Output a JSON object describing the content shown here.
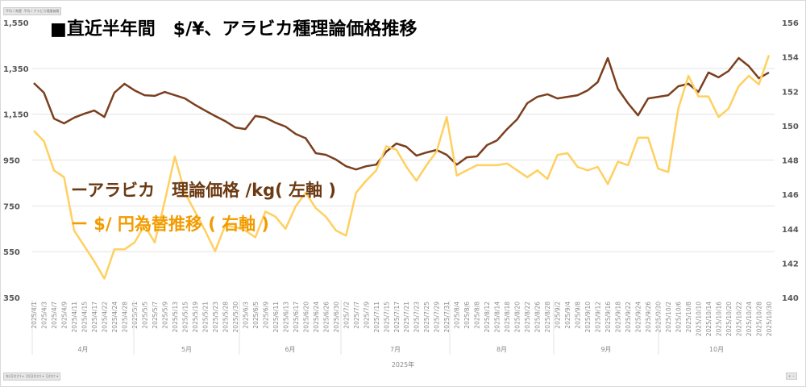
{
  "filters_top": [
    "平均 / 為替",
    "平均 / アラビカ理論価格"
  ],
  "filters_bottom": [
    "年(日付け) ▾",
    "月(日付け) ▾",
    "日付け ▾"
  ],
  "zoom_buttons": "+ −",
  "chart_data": {
    "type": "line",
    "title": "■直近半年間　$/¥、アラビカ種理論価格推移",
    "year_label": "2025年",
    "months": [
      "4月",
      "5月",
      "6月",
      "7月",
      "8月",
      "9月",
      "10月"
    ],
    "x": [
      "2025/4/1",
      "2025/4/3",
      "2025/4/7",
      "2025/4/9",
      "2025/4/11",
      "2025/4/15",
      "2025/4/17",
      "2025/4/22",
      "2025/4/24",
      "2025/4/28",
      "2025/5/1",
      "2025/5/5",
      "2025/5/7",
      "2025/5/9",
      "2025/5/13",
      "2025/5/15",
      "2025/5/19",
      "2025/5/21",
      "2025/5/23",
      "2025/5/28",
      "2025/5/30",
      "2025/6/3",
      "2025/6/5",
      "2025/6/9",
      "2025/6/11",
      "2025/6/13",
      "2025/6/17",
      "2025/6/20",
      "2025/6/24",
      "2025/6/26",
      "2025/6/30",
      "2025/7/2",
      "2025/7/7",
      "2025/7/9",
      "2025/7/11",
      "2025/7/15",
      "2025/7/17",
      "2025/7/21",
      "2025/7/23",
      "2025/7/25",
      "2025/7/29",
      "2025/7/31",
      "2025/8/4",
      "2025/8/6",
      "2025/8/8",
      "2025/8/12",
      "2025/8/14",
      "2025/8/18",
      "2025/8/20",
      "2025/8/22",
      "2025/8/26",
      "2025/8/28",
      "2025/9/2",
      "2025/9/4",
      "2025/9/8",
      "2025/9/10",
      "2025/9/12",
      "2025/9/16",
      "2025/9/18",
      "2025/9/22",
      "2025/9/24",
      "2025/9/26",
      "2025/9/30",
      "2025/10/2",
      "2025/10/6",
      "2025/10/8",
      "2025/10/10",
      "2025/10/14",
      "2025/10/16",
      "2025/10/20",
      "2025/10/22",
      "2025/10/24",
      "2025/10/28",
      "2025/10/30"
    ],
    "series": [
      {
        "name": "ーアラビカ　理論価格 /kg( 左軸 )",
        "axis": "left",
        "color": "#7b3f1f",
        "label_color": "#6b3a12",
        "values": [
          1286,
          1244,
          1131,
          1110,
          1135,
          1152,
          1166,
          1138,
          1244,
          1283,
          1254,
          1233,
          1230,
          1247,
          1233,
          1219,
          1191,
          1166,
          1142,
          1120,
          1092,
          1085,
          1142,
          1135,
          1113,
          1096,
          1064,
          1045,
          980,
          973,
          952,
          923,
          909,
          923,
          930,
          987,
          1022,
          1008,
          969,
          983,
          994,
          973,
          930,
          962,
          966,
          1015,
          1036,
          1085,
          1128,
          1198,
          1226,
          1237,
          1219,
          1226,
          1233,
          1254,
          1290,
          1395,
          1261,
          1198,
          1145,
          1219,
          1226,
          1233,
          1272,
          1283,
          1247,
          1332,
          1311,
          1339,
          1395,
          1360,
          1307,
          1332
        ]
      },
      {
        "name": "ー $/ 円為替推移 ( 右軸 )",
        "axis": "right",
        "color": "#ffd060",
        "label_color": "#f29b00",
        "values": [
          149.7,
          149.1,
          147.4,
          147.0,
          143.9,
          143.0,
          142.1,
          141.1,
          142.8,
          142.8,
          143.2,
          144.2,
          143.2,
          145.6,
          148.2,
          146.1,
          145.0,
          143.9,
          142.7,
          144.2,
          144.1,
          143.9,
          143.5,
          145.0,
          144.7,
          144.0,
          145.3,
          146.1,
          145.2,
          144.7,
          143.9,
          143.6,
          146.1,
          146.8,
          147.4,
          148.8,
          148.6,
          147.6,
          146.8,
          147.7,
          148.5,
          150.5,
          147.1,
          147.4,
          147.7,
          147.7,
          147.7,
          147.8,
          147.4,
          147.0,
          147.4,
          146.9,
          148.3,
          148.4,
          147.6,
          147.4,
          147.6,
          146.6,
          147.9,
          147.7,
          149.3,
          149.3,
          147.5,
          147.3,
          151.0,
          152.9,
          151.7,
          151.7,
          150.5,
          151.0,
          152.3,
          152.9,
          152.4,
          154.1
        ]
      }
    ],
    "ylim_left": [
      350,
      1550
    ],
    "yticks_left": [
      "1,550",
      "1,350",
      "1,150",
      "950",
      "750",
      "550",
      "350"
    ],
    "ylim_right": [
      140,
      156
    ],
    "yticks_right": [
      "156",
      "154",
      "152",
      "150",
      "148",
      "146",
      "144",
      "142",
      "140"
    ],
    "grid": true,
    "legend": "center-left"
  }
}
